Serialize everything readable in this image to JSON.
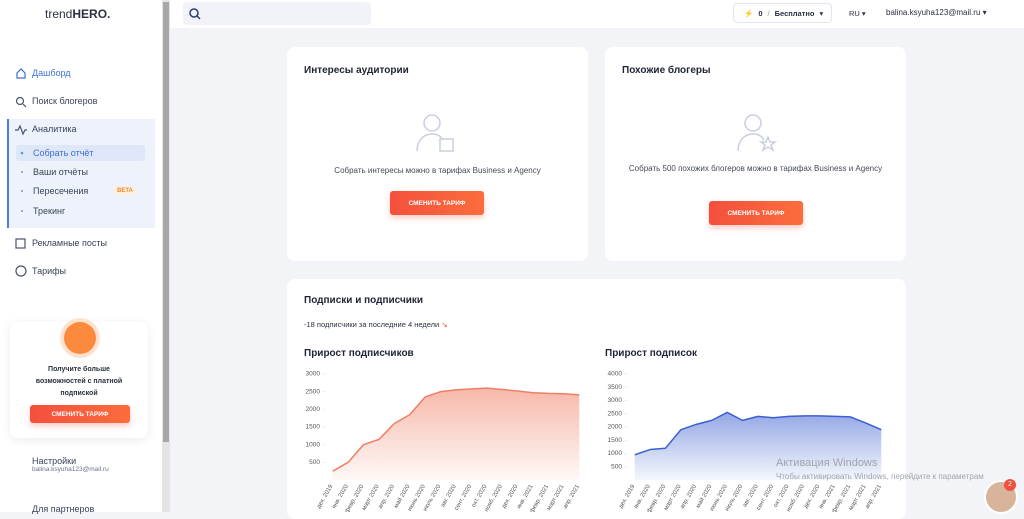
{
  "sidebar": {
    "logo": [
      "trend",
      "HERO."
    ],
    "menu": [
      "Дашборд",
      "Поиск блогеров",
      "Аналитика"
    ],
    "submenu": [
      "Собрать отчёт",
      "Ваши отчёты",
      "Пересечения",
      "Трекинг"
    ],
    "beta": "BETA",
    "menu2": [
      "Рекламные посты",
      "Тарифы"
    ],
    "promo": {
      "text": "Получите больше возможностей с платной подпиской",
      "button": "СМЕНИТЬ ТАРИФ"
    },
    "settings": {
      "label": "Настройки",
      "email": "balina.ksyuha123@mail.ru"
    },
    "partners": "Для партнеров"
  },
  "topbar": {
    "credits": "0",
    "separator": "/",
    "plan": "Бесплатно",
    "lang": "RU",
    "email": "balina.ksyuha123@mail.ru"
  },
  "cards": [
    {
      "title": "Интересы аудитории",
      "text": "Собрать интересы можно в тарифах Business и Agency",
      "button": "СМЕНИТЬ ТАРИФ"
    },
    {
      "title": "Похожие блогеры",
      "text": "Собрать 500 похожих блогеров можно в тарифах Business и Agency",
      "button": "СМЕНИТЬ ТАРИФ"
    }
  ],
  "subscriptions": {
    "title": "Подписки и подписчики",
    "summary": "-18 подписчики за последние 4 недели",
    "charts": [
      {
        "type": "area",
        "title": "Прирост подписчиков",
        "color": "#ef7f63",
        "categories": [
          "дек. 2019",
          "янв. 2020",
          "февр. 2020",
          "март 2020",
          "апр. 2020",
          "май 2020",
          "июнь 2020",
          "июль 2020",
          "авг. 2020",
          "сент. 2020",
          "окт. 2020",
          "нояб. 2020",
          "дек. 2020",
          "янв. 2021",
          "февр. 2021",
          "март 2021",
          "апр. 2021"
        ],
        "values": [
          250,
          500,
          1000,
          1150,
          1600,
          1850,
          2350,
          2500,
          2550,
          2580,
          2600,
          2560,
          2520,
          2470,
          2450,
          2440,
          2410
        ],
        "ylim": [
          0,
          3000
        ],
        "yticks": [
          500,
          1000,
          1500,
          2000,
          2500,
          3000
        ]
      },
      {
        "type": "area",
        "title": "Прирост подписок",
        "color": "#3b5fcf",
        "categories": [
          "дек. 2019",
          "янв. 2020",
          "февр. 2020",
          "март 2020",
          "апр. 2020",
          "май 2020",
          "июнь 2020",
          "июль 2020",
          "авг. 2020",
          "сент. 2020",
          "окт. 2020",
          "нояб. 2020",
          "дек. 2020",
          "янв. 2021",
          "февр. 2021",
          "март 2021",
          "апр. 2021"
        ],
        "values": [
          950,
          1150,
          1200,
          1900,
          2100,
          2250,
          2550,
          2250,
          2400,
          2350,
          2400,
          2420,
          2420,
          2400,
          2380,
          2150,
          1900
        ],
        "ylim": [
          0,
          4000
        ],
        "yticks": [
          500,
          1000,
          1500,
          2000,
          2500,
          3000,
          3500,
          4000
        ]
      }
    ]
  },
  "watermark": {
    "title": "Активация Windows",
    "text": "Чтобы активировать Windows, перейдите к параметрам"
  },
  "notifications": "2"
}
